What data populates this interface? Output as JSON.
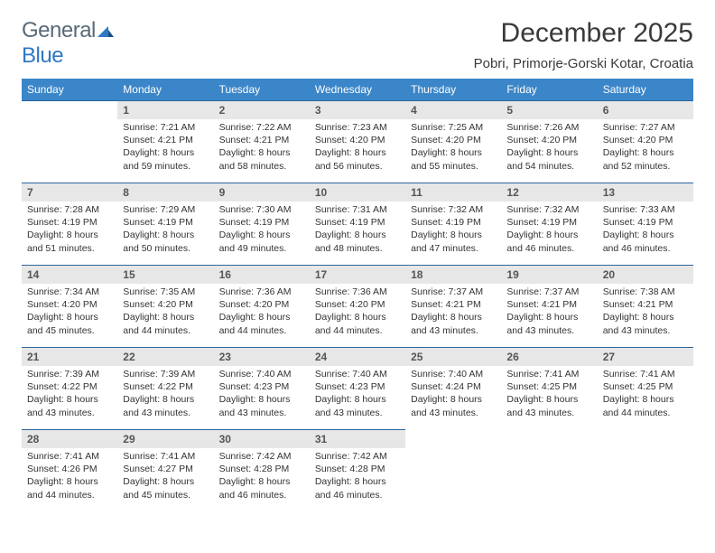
{
  "brand": {
    "part1": "General",
    "part2": "Blue"
  },
  "title": "December 2025",
  "location": "Pobri, Primorje-Gorski Kotar, Croatia",
  "day_headers": [
    "Sunday",
    "Monday",
    "Tuesday",
    "Wednesday",
    "Thursday",
    "Friday",
    "Saturday"
  ],
  "colors": {
    "header_bg": "#3b86c8",
    "header_text": "#ffffff",
    "daynum_bg": "#e7e7e7",
    "rule": "#2a66a0",
    "brand_gray": "#5a6a78",
    "brand_blue": "#2f78c4"
  },
  "weeks": [
    [
      null,
      {
        "n": "1",
        "sr": "7:21 AM",
        "ss": "4:21 PM",
        "dl": "8 hours and 59 minutes."
      },
      {
        "n": "2",
        "sr": "7:22 AM",
        "ss": "4:21 PM",
        "dl": "8 hours and 58 minutes."
      },
      {
        "n": "3",
        "sr": "7:23 AM",
        "ss": "4:20 PM",
        "dl": "8 hours and 56 minutes."
      },
      {
        "n": "4",
        "sr": "7:25 AM",
        "ss": "4:20 PM",
        "dl": "8 hours and 55 minutes."
      },
      {
        "n": "5",
        "sr": "7:26 AM",
        "ss": "4:20 PM",
        "dl": "8 hours and 54 minutes."
      },
      {
        "n": "6",
        "sr": "7:27 AM",
        "ss": "4:20 PM",
        "dl": "8 hours and 52 minutes."
      }
    ],
    [
      {
        "n": "7",
        "sr": "7:28 AM",
        "ss": "4:19 PM",
        "dl": "8 hours and 51 minutes."
      },
      {
        "n": "8",
        "sr": "7:29 AM",
        "ss": "4:19 PM",
        "dl": "8 hours and 50 minutes."
      },
      {
        "n": "9",
        "sr": "7:30 AM",
        "ss": "4:19 PM",
        "dl": "8 hours and 49 minutes."
      },
      {
        "n": "10",
        "sr": "7:31 AM",
        "ss": "4:19 PM",
        "dl": "8 hours and 48 minutes."
      },
      {
        "n": "11",
        "sr": "7:32 AM",
        "ss": "4:19 PM",
        "dl": "8 hours and 47 minutes."
      },
      {
        "n": "12",
        "sr": "7:32 AM",
        "ss": "4:19 PM",
        "dl": "8 hours and 46 minutes."
      },
      {
        "n": "13",
        "sr": "7:33 AM",
        "ss": "4:19 PM",
        "dl": "8 hours and 46 minutes."
      }
    ],
    [
      {
        "n": "14",
        "sr": "7:34 AM",
        "ss": "4:20 PM",
        "dl": "8 hours and 45 minutes."
      },
      {
        "n": "15",
        "sr": "7:35 AM",
        "ss": "4:20 PM",
        "dl": "8 hours and 44 minutes."
      },
      {
        "n": "16",
        "sr": "7:36 AM",
        "ss": "4:20 PM",
        "dl": "8 hours and 44 minutes."
      },
      {
        "n": "17",
        "sr": "7:36 AM",
        "ss": "4:20 PM",
        "dl": "8 hours and 44 minutes."
      },
      {
        "n": "18",
        "sr": "7:37 AM",
        "ss": "4:21 PM",
        "dl": "8 hours and 43 minutes."
      },
      {
        "n": "19",
        "sr": "7:37 AM",
        "ss": "4:21 PM",
        "dl": "8 hours and 43 minutes."
      },
      {
        "n": "20",
        "sr": "7:38 AM",
        "ss": "4:21 PM",
        "dl": "8 hours and 43 minutes."
      }
    ],
    [
      {
        "n": "21",
        "sr": "7:39 AM",
        "ss": "4:22 PM",
        "dl": "8 hours and 43 minutes."
      },
      {
        "n": "22",
        "sr": "7:39 AM",
        "ss": "4:22 PM",
        "dl": "8 hours and 43 minutes."
      },
      {
        "n": "23",
        "sr": "7:40 AM",
        "ss": "4:23 PM",
        "dl": "8 hours and 43 minutes."
      },
      {
        "n": "24",
        "sr": "7:40 AM",
        "ss": "4:23 PM",
        "dl": "8 hours and 43 minutes."
      },
      {
        "n": "25",
        "sr": "7:40 AM",
        "ss": "4:24 PM",
        "dl": "8 hours and 43 minutes."
      },
      {
        "n": "26",
        "sr": "7:41 AM",
        "ss": "4:25 PM",
        "dl": "8 hours and 43 minutes."
      },
      {
        "n": "27",
        "sr": "7:41 AM",
        "ss": "4:25 PM",
        "dl": "8 hours and 44 minutes."
      }
    ],
    [
      {
        "n": "28",
        "sr": "7:41 AM",
        "ss": "4:26 PM",
        "dl": "8 hours and 44 minutes."
      },
      {
        "n": "29",
        "sr": "7:41 AM",
        "ss": "4:27 PM",
        "dl": "8 hours and 45 minutes."
      },
      {
        "n": "30",
        "sr": "7:42 AM",
        "ss": "4:28 PM",
        "dl": "8 hours and 46 minutes."
      },
      {
        "n": "31",
        "sr": "7:42 AM",
        "ss": "4:28 PM",
        "dl": "8 hours and 46 minutes."
      },
      null,
      null,
      null
    ]
  ],
  "labels": {
    "sunrise": "Sunrise:",
    "sunset": "Sunset:",
    "daylight": "Daylight:"
  }
}
